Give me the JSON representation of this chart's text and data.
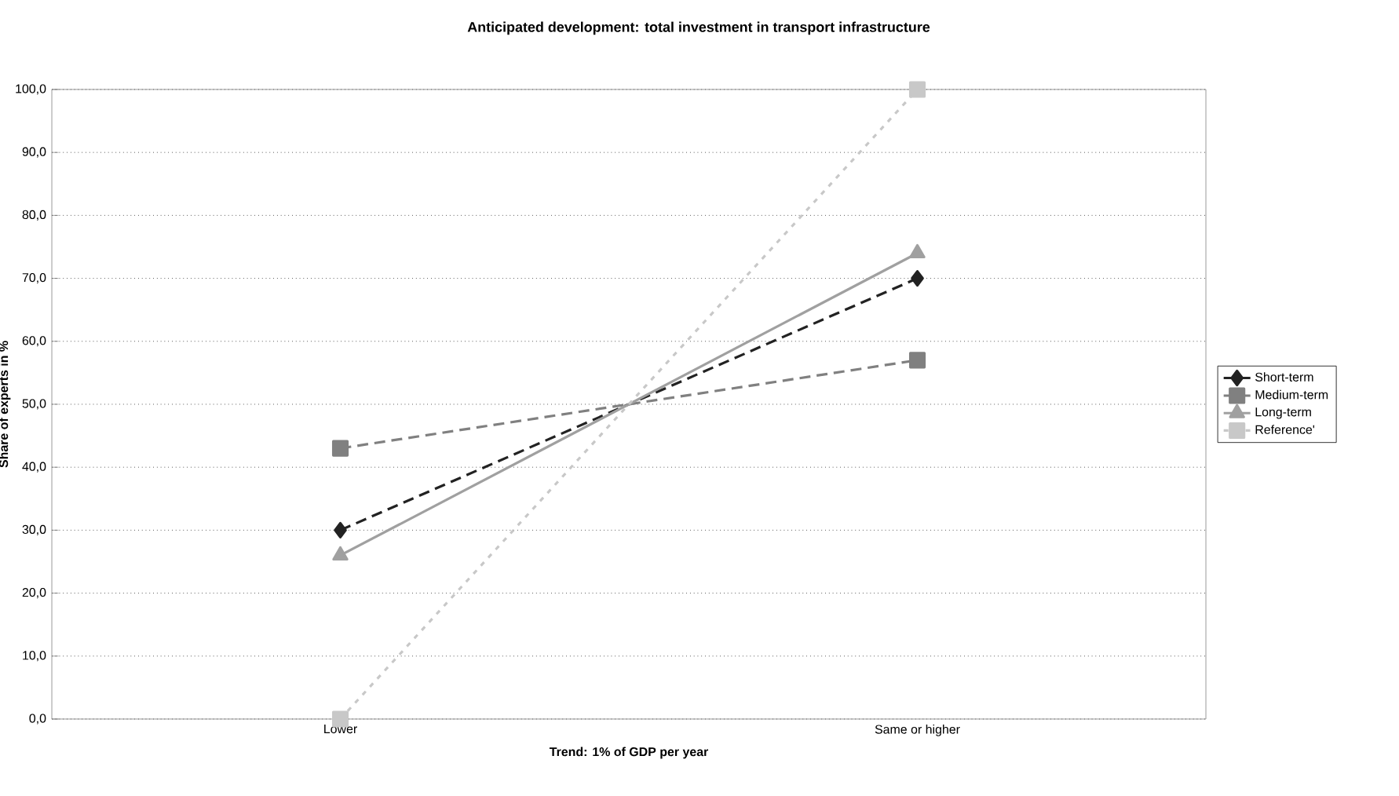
{
  "chart_data": {
    "type": "line",
    "title": "Anticipated development: total investment in transport infrastructure",
    "xlabel": "Trend: 1% of GDP per year",
    "ylabel": "Share of experts in %",
    "categories": [
      "Lower",
      "Same or higher"
    ],
    "series": [
      {
        "name": "Short-term",
        "color": "#222222",
        "marker": "diamond",
        "line_style": "dashed",
        "values": [
          30,
          70
        ]
      },
      {
        "name": "Medium-term",
        "color": "#808080",
        "marker": "square",
        "line_style": "dashed",
        "values": [
          43,
          57
        ]
      },
      {
        "name": "Long-term",
        "color": "#a0a0a0",
        "marker": "triangle",
        "line_style": "solid",
        "values": [
          26,
          74
        ]
      },
      {
        "name": "Reference'",
        "color": "#c8c8c8",
        "marker": "square",
        "line_style": "dotted",
        "values": [
          0,
          100
        ]
      }
    ],
    "ylim": [
      0,
      100
    ],
    "yticks": [
      {
        "value": 0,
        "label": "0,0"
      },
      {
        "value": 10,
        "label": "10,0"
      },
      {
        "value": 20,
        "label": "20,0"
      },
      {
        "value": 30,
        "label": "30,0"
      },
      {
        "value": 40,
        "label": "40,0"
      },
      {
        "value": 50,
        "label": "50,0"
      },
      {
        "value": 60,
        "label": "60,0"
      },
      {
        "value": 70,
        "label": "70,0"
      },
      {
        "value": 80,
        "label": "80,0"
      },
      {
        "value": 90,
        "label": "90,0"
      },
      {
        "value": 100,
        "label": "100,0"
      }
    ],
    "grid": "y",
    "legend": "right"
  }
}
